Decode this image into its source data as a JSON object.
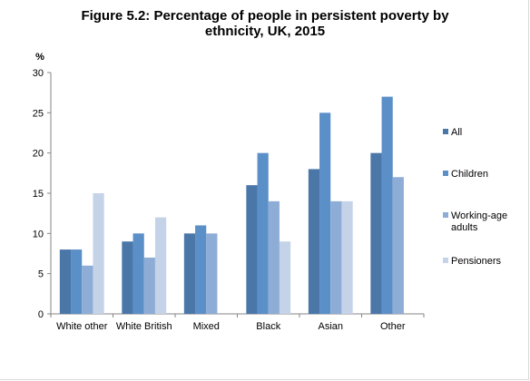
{
  "chart_data": {
    "type": "bar",
    "title_line1": "Figure 5.2: Percentage of people in persistent poverty by",
    "title_line2": "ethnicity, UK, 2015",
    "ylabel": "%",
    "xlabel": "",
    "ylim": [
      0,
      30
    ],
    "yticks": [
      "0",
      "5",
      "10",
      "15",
      "20",
      "25",
      "30"
    ],
    "grid": false,
    "legend_position": "right",
    "categories": [
      "White other",
      "White British",
      "Mixed",
      "Black",
      "Asian",
      "Other"
    ],
    "series": [
      {
        "name": "All",
        "values": [
          8,
          9,
          10,
          16,
          18,
          20
        ],
        "color": "#4a77a8"
      },
      {
        "name": "Children",
        "values": [
          8,
          10,
          11,
          20,
          25,
          27
        ],
        "color": "#5b8fc7"
      },
      {
        "name": "Working-age adults",
        "legend_lines": [
          "Working-age",
          "adults"
        ],
        "values": [
          6,
          7,
          10,
          14,
          14,
          17
        ],
        "color": "#8eadd6"
      },
      {
        "name": "Pensioners",
        "values": [
          15,
          12,
          null,
          9,
          14,
          null
        ],
        "color": "#c5d3e8"
      }
    ]
  }
}
